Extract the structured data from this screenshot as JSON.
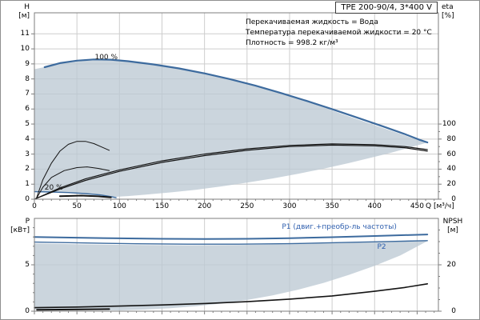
{
  "title_box": {
    "label": "TPE 200-90/4, 3*400 V"
  },
  "annotations": [
    "Перекачиваемая жидкость = Вода",
    "Температура перекачиваемой жидкости = 20 °C",
    "Плотность = 998.2 кг/м³"
  ],
  "colors": {
    "curve_blue": "#3d6b9e",
    "label_blue": "#2f5fae",
    "black": "#141414",
    "grid": "#cdcdcd",
    "axis": "#7e7e7e",
    "fill": "#bcc9d4"
  },
  "chart_data": [
    {
      "name": "hq-efficiency-chart",
      "type": "line",
      "xlabel": "Q [м³/ч]",
      "ylabel_left_lines": [
        "H",
        "[м]"
      ],
      "ylabel_right_lines": [
        "eta",
        "[%]"
      ],
      "xlim": [
        0,
        475
      ],
      "ylim": [
        0,
        12.4
      ],
      "x_ticks": [
        0,
        50,
        100,
        150,
        200,
        250,
        300,
        350,
        400,
        450
      ],
      "x_minor_step": 10,
      "y_ticks": [
        0,
        1,
        2,
        3,
        4,
        5,
        6,
        7,
        8,
        9,
        10,
        11
      ],
      "grid": true,
      "secondary_axis": {
        "lim": [
          0,
          100
        ],
        "primary_equiv": [
          0,
          5
        ],
        "ticks": [
          0,
          20,
          40,
          60,
          80,
          100
        ],
        "minor_step": 10,
        "unit": "%"
      },
      "envelope": [
        [
          0,
          8.65
        ],
        [
          30,
          9.0
        ],
        [
          60,
          9.22
        ],
        [
          90,
          9.24
        ],
        [
          120,
          9.1
        ],
        [
          160,
          8.8
        ],
        [
          200,
          8.35
        ],
        [
          240,
          7.85
        ],
        [
          280,
          7.2
        ],
        [
          320,
          6.52
        ],
        [
          360,
          5.7
        ],
        [
          400,
          4.92
        ],
        [
          430,
          4.35
        ],
        [
          450,
          3.96
        ],
        [
          462,
          3.76
        ],
        [
          440,
          3.42
        ],
        [
          420,
          3.1
        ],
        [
          400,
          2.82
        ],
        [
          370,
          2.41
        ],
        [
          340,
          2.03
        ],
        [
          310,
          1.69
        ],
        [
          280,
          1.38
        ],
        [
          250,
          1.1
        ],
        [
          220,
          0.85
        ],
        [
          190,
          0.63
        ],
        [
          160,
          0.45
        ],
        [
          130,
          0.3
        ],
        [
          110,
          0.21
        ],
        [
          95,
          0.16
        ],
        [
          88,
          0.18
        ],
        [
          70,
          0.3
        ],
        [
          50,
          0.4
        ],
        [
          25,
          0.46
        ],
        [
          0,
          0.48
        ]
      ],
      "series": [
        {
          "name": "head-100pct",
          "color": "blue",
          "width": 2.2,
          "points": [
            [
              12,
              8.78
            ],
            [
              30,
              9.05
            ],
            [
              50,
              9.22
            ],
            [
              70,
              9.3
            ],
            [
              90,
              9.28
            ],
            [
              110,
              9.18
            ],
            [
              140,
              8.97
            ],
            [
              170,
              8.7
            ],
            [
              200,
              8.37
            ],
            [
              230,
              7.99
            ],
            [
              260,
              7.55
            ],
            [
              290,
              7.06
            ],
            [
              320,
              6.54
            ],
            [
              350,
              5.99
            ],
            [
              380,
              5.42
            ],
            [
              410,
              4.84
            ],
            [
              435,
              4.34
            ],
            [
              452,
              3.97
            ],
            [
              462,
              3.78
            ]
          ]
        },
        {
          "name": "head-min-speed",
          "color": "blue",
          "width": 1.4,
          "points": [
            [
              0,
              0.5
            ],
            [
              20,
              0.48
            ],
            [
              40,
              0.44
            ],
            [
              60,
              0.37
            ],
            [
              78,
              0.28
            ],
            [
              90,
              0.17
            ],
            [
              96,
              0.1
            ]
          ]
        },
        {
          "name": "eta-pump",
          "color": "black",
          "width": 1.2,
          "axis": "secondary",
          "points": [
            [
              0,
              0
            ],
            [
              30,
              15
            ],
            [
              60,
              27
            ],
            [
              100,
              39
            ],
            [
              150,
              51
            ],
            [
              200,
              60
            ],
            [
              250,
              67
            ],
            [
              300,
              71.5
            ],
            [
              350,
              73.5
            ],
            [
              400,
              72.5
            ],
            [
              435,
              70
            ],
            [
              462,
              66
            ]
          ]
        },
        {
          "name": "eta-pump-motor",
          "color": "black",
          "width": 1.2,
          "axis": "secondary",
          "points": [
            [
              0,
              0
            ],
            [
              30,
              13.5
            ],
            [
              60,
              25
            ],
            [
              100,
              37
            ],
            [
              150,
              49
            ],
            [
              200,
              58
            ],
            [
              250,
              65
            ],
            [
              300,
              70
            ],
            [
              350,
              72
            ],
            [
              400,
              71
            ],
            [
              435,
              68.5
            ],
            [
              462,
              64
            ]
          ]
        },
        {
          "name": "eta-arc-low-speed-a",
          "color": "black",
          "width": 1,
          "axis": "secondary",
          "points": [
            [
              2,
              0
            ],
            [
              10,
              26
            ],
            [
              20,
              48
            ],
            [
              30,
              64
            ],
            [
              40,
              73
            ],
            [
              50,
              77
            ],
            [
              60,
              77
            ],
            [
              70,
              74
            ],
            [
              80,
              69
            ],
            [
              88,
              65
            ]
          ]
        },
        {
          "name": "eta-arc-low-speed-b",
          "color": "black",
          "width": 1,
          "axis": "secondary",
          "points": [
            [
              2,
              0
            ],
            [
              10,
              16
            ],
            [
              20,
              29
            ],
            [
              35,
              38
            ],
            [
              50,
              42
            ],
            [
              62,
              43
            ],
            [
              75,
              41
            ],
            [
              88,
              38
            ]
          ]
        },
        {
          "name": "head-low-speed-stub",
          "color": "black",
          "width": 2,
          "points": [
            [
              30,
              0.2
            ],
            [
              55,
              0.24
            ],
            [
              75,
              0.19
            ],
            [
              90,
              0.12
            ]
          ]
        }
      ],
      "labels": [
        {
          "id": "100pct",
          "text": "100 %",
          "q": 71,
          "v": 9.69,
          "color": "black"
        },
        {
          "id": "20pct",
          "text": "20 %",
          "q": 12,
          "v": 1.0,
          "color": "black"
        }
      ]
    },
    {
      "name": "power-npsh-chart",
      "type": "line",
      "xlabel": "",
      "ylabel_left_lines": [
        "P",
        "[кВт]"
      ],
      "ylabel_right_lines": [
        "NPSH",
        "[м]"
      ],
      "xlim": [
        0,
        475
      ],
      "ylim": [
        0,
        10
      ],
      "x_ticks": [
        0,
        50,
        100,
        150,
        200,
        250,
        300,
        350,
        400,
        450
      ],
      "x_minor_step": 10,
      "y_ticks": [
        0,
        5
      ],
      "y_minor_step": 1,
      "grid_y": [
        5
      ],
      "secondary_axis": {
        "lim": [
          0,
          40
        ],
        "primary_equiv": [
          0,
          10
        ],
        "ticks": [
          0,
          20
        ],
        "minor_step": 5,
        "unit": "м"
      },
      "envelope": [
        [
          0,
          7.3
        ],
        [
          60,
          7.2
        ],
        [
          120,
          7.14
        ],
        [
          180,
          7.1
        ],
        [
          240,
          7.13
        ],
        [
          300,
          7.22
        ],
        [
          360,
          7.35
        ],
        [
          420,
          7.48
        ],
        [
          462,
          7.55
        ],
        [
          430,
          6.0
        ],
        [
          400,
          4.9
        ],
        [
          370,
          3.92
        ],
        [
          340,
          3.05
        ],
        [
          310,
          2.32
        ],
        [
          280,
          1.71
        ],
        [
          250,
          1.21
        ],
        [
          220,
          0.83
        ],
        [
          190,
          0.54
        ],
        [
          160,
          0.33
        ],
        [
          130,
          0.18
        ],
        [
          100,
          0.09
        ],
        [
          60,
          0.14
        ],
        [
          30,
          0.18
        ],
        [
          0,
          0.2
        ]
      ],
      "series": [
        {
          "name": "p1",
          "color": "blue",
          "width": 2,
          "points": [
            [
              0,
              8.0
            ],
            [
              50,
              7.92
            ],
            [
              100,
              7.85
            ],
            [
              150,
              7.8
            ],
            [
              200,
              7.78
            ],
            [
              250,
              7.8
            ],
            [
              300,
              7.87
            ],
            [
              350,
              7.97
            ],
            [
              400,
              8.1
            ],
            [
              435,
              8.2
            ],
            [
              462,
              8.27
            ]
          ]
        },
        {
          "name": "p2",
          "color": "blue",
          "width": 1.4,
          "points": [
            [
              0,
              7.45
            ],
            [
              60,
              7.35
            ],
            [
              120,
              7.27
            ],
            [
              180,
              7.22
            ],
            [
              240,
              7.22
            ],
            [
              300,
              7.28
            ],
            [
              360,
              7.4
            ],
            [
              420,
              7.52
            ],
            [
              462,
              7.6
            ]
          ]
        },
        {
          "name": "npsh",
          "color": "black",
          "width": 1.6,
          "axis": "secondary",
          "points": [
            [
              0,
              1.5
            ],
            [
              50,
              1.8
            ],
            [
              100,
              2.2
            ],
            [
              150,
              2.7
            ],
            [
              200,
              3.3
            ],
            [
              250,
              4.1
            ],
            [
              300,
              5.2
            ],
            [
              350,
              6.6
            ],
            [
              400,
              8.6
            ],
            [
              435,
              10.2
            ],
            [
              462,
              11.8
            ]
          ]
        },
        {
          "name": "p-min-speed-stub",
          "color": "black",
          "width": 2,
          "points": [
            [
              3,
              0.15
            ],
            [
              45,
              0.18
            ],
            [
              88,
              0.22
            ]
          ]
        }
      ],
      "labels": [
        {
          "id": "p1",
          "text": "P1 (двиг.+преобр-ль частоты)",
          "q": 291,
          "v": 9.5,
          "color": "blue"
        },
        {
          "id": "p2",
          "text": "P2",
          "q": 403,
          "v": 7.3,
          "color": "blue"
        }
      ]
    }
  ]
}
